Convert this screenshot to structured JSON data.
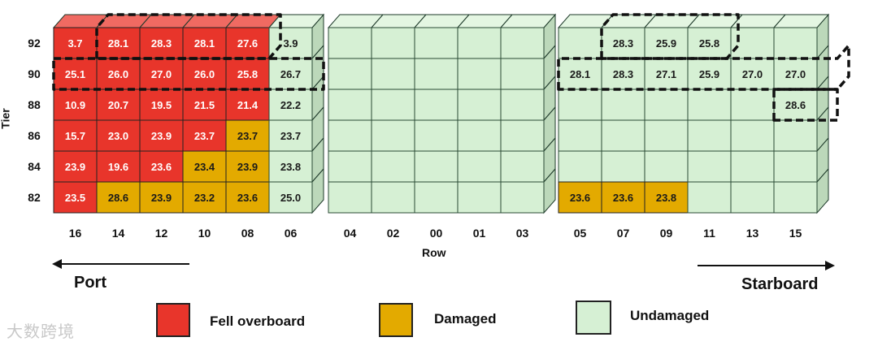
{
  "axis": {
    "y_title": "Tier",
    "x_title": "Row"
  },
  "tiers": [
    "92",
    "90",
    "88",
    "86",
    "84",
    "82"
  ],
  "bays": [
    {
      "rows": [
        "16",
        "14",
        "12",
        "10",
        "08",
        "06"
      ]
    },
    {
      "rows": [
        "04",
        "02",
        "00",
        "01",
        "03"
      ]
    },
    {
      "rows": [
        "05",
        "07",
        "09",
        "11",
        "13",
        "15"
      ]
    }
  ],
  "cells": [
    [
      "F",
      "F",
      "F",
      "F",
      "F",
      "U",
      "U",
      "U",
      "U",
      "U",
      "U",
      "U",
      "U",
      "U",
      "U",
      "U",
      "U"
    ],
    [
      "F",
      "F",
      "F",
      "F",
      "F",
      "U",
      "U",
      "U",
      "U",
      "U",
      "U",
      "U",
      "U",
      "U",
      "U",
      "U",
      "U"
    ],
    [
      "F",
      "F",
      "F",
      "F",
      "F",
      "U",
      "U",
      "U",
      "U",
      "U",
      "U",
      "U",
      "U",
      "U",
      "U",
      "U",
      "U"
    ],
    [
      "F",
      "F",
      "F",
      "F",
      "D",
      "U",
      "U",
      "U",
      "U",
      "U",
      "U",
      "U",
      "U",
      "U",
      "U",
      "U",
      "U"
    ],
    [
      "F",
      "F",
      "F",
      "D",
      "D",
      "U",
      "U",
      "U",
      "U",
      "U",
      "U",
      "U",
      "U",
      "U",
      "U",
      "U",
      "U"
    ],
    [
      "F",
      "D",
      "D",
      "D",
      "D",
      "U",
      "U",
      "U",
      "U",
      "U",
      "U",
      "D",
      "D",
      "D",
      "U",
      "U",
      "U"
    ]
  ],
  "values": [
    [
      "3.7",
      "28.1",
      "28.3",
      "28.1",
      "27.6",
      "3.9",
      "",
      "",
      "",
      "",
      "",
      "",
      "28.3",
      "25.9",
      "25.8",
      "",
      ""
    ],
    [
      "25.1",
      "26.0",
      "27.0",
      "26.0",
      "25.8",
      "26.7",
      "",
      "",
      "",
      "",
      "",
      "28.1",
      "28.3",
      "27.1",
      "25.9",
      "27.0",
      "27.0"
    ],
    [
      "10.9",
      "20.7",
      "19.5",
      "21.5",
      "21.4",
      "22.2",
      "",
      "",
      "",
      "",
      "",
      "",
      "",
      "",
      "",
      "",
      "28.6"
    ],
    [
      "15.7",
      "23.0",
      "23.9",
      "23.7",
      "23.7",
      "23.7",
      "",
      "",
      "",
      "",
      "",
      "",
      "",
      "",
      "",
      "",
      ""
    ],
    [
      "23.9",
      "19.6",
      "23.6",
      "23.4",
      "23.9",
      "23.8",
      "",
      "",
      "",
      "",
      "",
      "",
      "",
      "",
      "",
      "",
      ""
    ],
    [
      "23.5",
      "28.6",
      "23.9",
      "23.2",
      "23.6",
      "25.0",
      "",
      "",
      "",
      "",
      "",
      "23.6",
      "23.6",
      "23.8",
      "",
      "",
      ""
    ]
  ],
  "direction": {
    "left": "Port",
    "right": "Starboard"
  },
  "legend": [
    {
      "label": "Fell overboard",
      "color": "#e8352b"
    },
    {
      "label": "Damaged",
      "color": "#e3aa00"
    },
    {
      "label": "Undamaged",
      "color": "#d6f0d4"
    }
  ],
  "colors": {
    "F": {
      "front": "#e8352b",
      "side": "#b8241c",
      "top": "#f06a62",
      "text": "#ffffff"
    },
    "D": {
      "front": "#e3aa00",
      "side": "#b58700",
      "top": "#f0c440",
      "text": "#1a1a1a"
    },
    "U": {
      "front": "#d6f0d4",
      "side": "#bcd8ba",
      "top": "#e4f6e2",
      "text": "#1a1a1a"
    }
  },
  "watermark": "大数跨境"
}
